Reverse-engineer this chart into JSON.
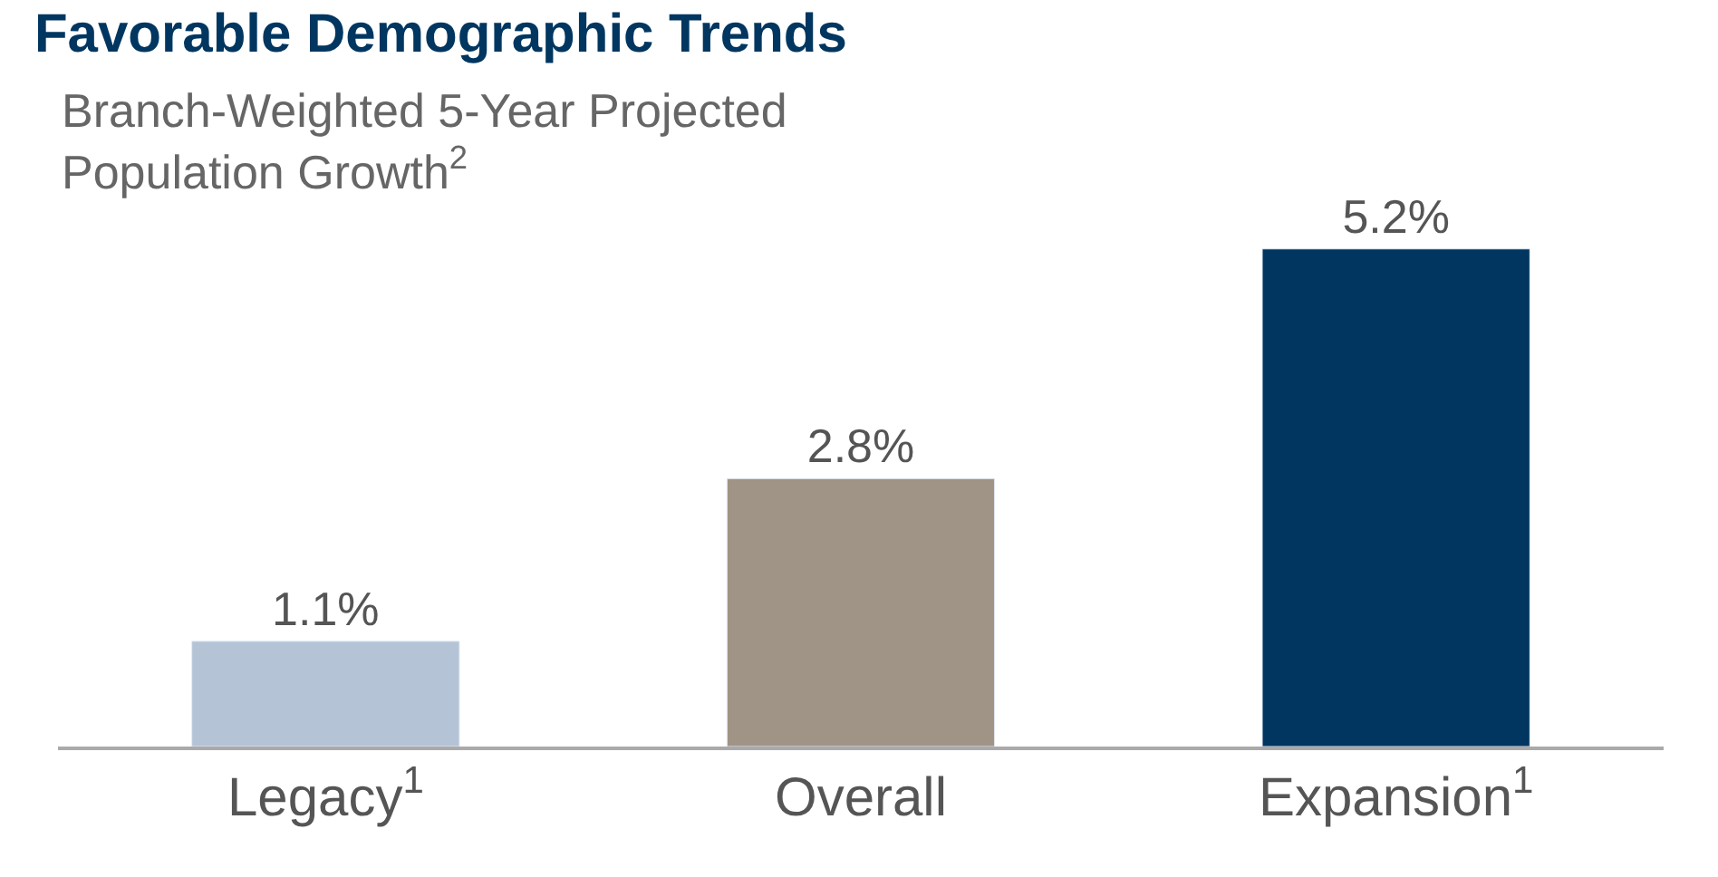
{
  "chart_data": {
    "type": "bar",
    "title": "Favorable Demographic Trends",
    "subtitle": "Branch-Weighted 5-Year Projected Population Growth$^{2}$",
    "categories": [
      "Legacy$^{1}$",
      "Overall",
      "Expansion$^{1}$"
    ],
    "values": [
      1.1,
      2.8,
      5.2
    ],
    "colors": [
      "#b4c3d6",
      "#a09486",
      "#003660"
    ],
    "value_labels": [
      "1.1%",
      "2.8%",
      "5.2%"
    ],
    "legend": false
  }
}
